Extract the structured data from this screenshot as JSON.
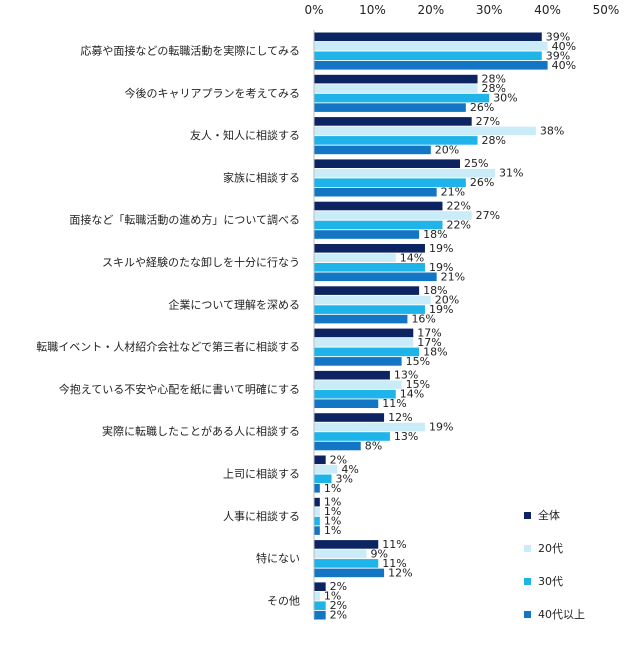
{
  "chart_data": {
    "type": "bar",
    "orientation": "horizontal",
    "title": "",
    "xlabel": "",
    "ylabel": "",
    "xlim": [
      0,
      50
    ],
    "x_ticks": [
      "0%",
      "10%",
      "20%",
      "30%",
      "40%",
      "50%"
    ],
    "x_tick_values": [
      0,
      10,
      20,
      30,
      40,
      50
    ],
    "x_axis_position": "top",
    "grid": false,
    "legend_position": "bottom-right",
    "categories": [
      "応募や面接などの転職活動を実際にしてみる",
      "今後のキャリアプランを考えてみる",
      "友人・知人に相談する",
      "家族に相談する",
      "面接など「転職活動の進め方」について調べる",
      "スキルや経験のたな卸しを十分に行なう",
      "企業について理解を深める",
      "転職イベント・人材紹介会社などで第三者に相談する",
      "今抱えている不安や心配を紙に書いて明確にする",
      "実際に転職したことがある人に相談する",
      "上司に相談する",
      "人事に相談する",
      "特にない",
      "その他"
    ],
    "series": [
      {
        "name": "全体",
        "color": "#0c2461",
        "values": [
          39,
          28,
          27,
          25,
          22,
          19,
          18,
          17,
          13,
          12,
          2,
          1,
          11,
          2
        ]
      },
      {
        "name": "20代",
        "color": "#c9ecf8",
        "values": [
          40,
          28,
          38,
          31,
          27,
          14,
          20,
          17,
          15,
          19,
          4,
          1,
          9,
          1
        ]
      },
      {
        "name": "30代",
        "color": "#1eb4ea",
        "values": [
          39,
          30,
          28,
          26,
          22,
          19,
          19,
          18,
          14,
          13,
          3,
          1,
          11,
          2
        ]
      },
      {
        "name": "40代以上",
        "color": "#1276c4",
        "values": [
          40,
          26,
          20,
          21,
          18,
          21,
          16,
          15,
          11,
          8,
          1,
          1,
          12,
          2
        ]
      }
    ],
    "value_suffix": "%"
  }
}
